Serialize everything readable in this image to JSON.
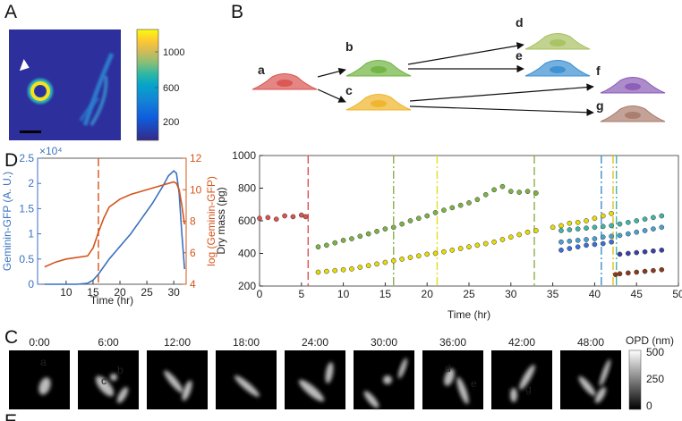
{
  "panel_labels": [
    "A",
    "B",
    "C",
    "D",
    "E"
  ],
  "panel_a": {
    "colorbar_ticks": [
      "1000",
      "600",
      "200"
    ]
  },
  "lineage": {
    "nodes": [
      {
        "label": "a",
        "color": "#d9534f"
      },
      {
        "label": "b",
        "color": "#6fb43f"
      },
      {
        "label": "c",
        "color": "#f0b429"
      },
      {
        "label": "d",
        "color": "#a8c060"
      },
      {
        "label": "e",
        "color": "#3b8fd1"
      },
      {
        "label": "f",
        "color": "#8a5bb5"
      },
      {
        "label": "g",
        "color": "#a97b6b"
      }
    ]
  },
  "panel_c": {
    "frames": [
      {
        "time": "0:00",
        "cells": [
          "a"
        ]
      },
      {
        "time": "6:00",
        "cells": [
          "b",
          "c"
        ]
      },
      {
        "time": "12:00",
        "cells": []
      },
      {
        "time": "18:00",
        "cells": []
      },
      {
        "time": "24:00",
        "cells": []
      },
      {
        "time": "30:00",
        "cells": []
      },
      {
        "time": "36:00",
        "cells": [
          "d",
          "e"
        ]
      },
      {
        "time": "42:00",
        "cells": [
          "f",
          "g"
        ]
      },
      {
        "time": "48:00",
        "cells": []
      }
    ],
    "colorbar_label": "OPD (nm)",
    "colorbar_ticks": [
      "500",
      "250",
      "0"
    ]
  },
  "chart_data": [
    {
      "type": "line",
      "xlabel": "Time (hr)",
      "ylabel": "Geminin-GFP (A. U.)",
      "y2label": "log (Geminin-GFP)",
      "y_multiplier": "×10⁴",
      "y_axis_color": "#3a72c0",
      "y2_axis_color": "#d4541c",
      "xlim": [
        4.7,
        32.3
      ],
      "xticks": [
        10,
        15,
        20,
        25,
        30
      ],
      "ylim": [
        0,
        2.5
      ],
      "yticks": [
        0,
        0.5,
        1,
        1.5,
        2,
        2.5
      ],
      "y2lim": [
        4,
        12
      ],
      "y2ticks": [
        4,
        6,
        8,
        10,
        12
      ],
      "x": [
        6,
        8,
        10,
        12,
        14,
        15,
        16,
        17,
        18,
        20,
        22,
        24,
        26,
        28,
        29,
        30,
        30.5,
        31,
        31.5,
        32
      ],
      "series": [
        {
          "color": "#3a72c0",
          "values": [
            0,
            0,
            0,
            0,
            0.02,
            0.08,
            0.2,
            0.35,
            0.5,
            0.75,
            1.0,
            1.3,
            1.6,
            1.95,
            2.15,
            2.25,
            2.2,
            1.8,
            1.0,
            0.3
          ]
        },
        {
          "color": "#d4541c",
          "axis": "y2",
          "values": [
            5.1,
            5.4,
            5.6,
            5.7,
            5.8,
            6.3,
            7.3,
            8.2,
            8.9,
            9.4,
            9.7,
            9.9,
            10.1,
            10.3,
            10.4,
            10.5,
            10.4,
            10,
            9,
            7.8
          ]
        }
      ],
      "vlines": [
        {
          "x": 16,
          "color": "#d4541c",
          "style": "dash"
        }
      ]
    },
    {
      "type": "scatter",
      "xlabel": "Time (hr)",
      "ylabel": "Dry mass (pg)",
      "xlim": [
        0,
        50
      ],
      "xticks": [
        0,
        5,
        10,
        15,
        20,
        25,
        30,
        35,
        40,
        45,
        50
      ],
      "ylim": [
        200,
        1000
      ],
      "yticks": [
        200,
        400,
        600,
        800,
        1000
      ],
      "series": [
        {
          "color": "#d9534f",
          "x": [
            0,
            1,
            2,
            3,
            4,
            5,
            5.5
          ],
          "values": [
            615,
            620,
            610,
            630,
            625,
            635,
            625
          ]
        },
        {
          "color": "#7cb342",
          "x": [
            7,
            8,
            9,
            10,
            11,
            12,
            13,
            14,
            15,
            16,
            17,
            18,
            19,
            20,
            21,
            22,
            23,
            24,
            25,
            26,
            27,
            28,
            29,
            30,
            31,
            32,
            33
          ],
          "values": [
            440,
            450,
            465,
            480,
            490,
            505,
            520,
            535,
            550,
            560,
            580,
            600,
            615,
            630,
            650,
            665,
            680,
            695,
            710,
            730,
            760,
            790,
            810,
            780,
            775,
            780,
            770
          ]
        },
        {
          "color": "#e6dc00",
          "x": [
            7,
            8,
            9,
            10,
            11,
            12,
            13,
            14,
            15,
            16,
            17,
            18,
            19,
            20,
            21,
            22,
            23,
            24,
            25,
            26,
            27,
            28,
            29,
            30,
            31,
            32,
            33
          ],
          "values": [
            285,
            290,
            295,
            300,
            305,
            315,
            325,
            335,
            345,
            355,
            365,
            375,
            385,
            395,
            400,
            410,
            420,
            430,
            440,
            450,
            460,
            470,
            485,
            500,
            515,
            530,
            540
          ]
        },
        {
          "color": "#e6dc00",
          "x": [
            35,
            36,
            37,
            38,
            39,
            40,
            41,
            42
          ],
          "values": [
            560,
            570,
            585,
            590,
            600,
            615,
            630,
            645
          ]
        },
        {
          "color": "#3fb6a8",
          "x": [
            36,
            37,
            38,
            39,
            40,
            41,
            42,
            43,
            44,
            45,
            46,
            47,
            48
          ],
          "values": [
            540,
            545,
            550,
            555,
            560,
            565,
            570,
            580,
            590,
            600,
            610,
            620,
            630
          ]
        },
        {
          "color": "#4aa0d0",
          "x": [
            36,
            37,
            38,
            39,
            40,
            41,
            42,
            43,
            44,
            45,
            46,
            47,
            48
          ],
          "values": [
            470,
            475,
            480,
            485,
            490,
            500,
            505,
            510,
            520,
            530,
            540,
            550,
            560
          ]
        },
        {
          "color": "#3a6fd8",
          "x": [
            36,
            37,
            38,
            39,
            40,
            41,
            42
          ],
          "values": [
            420,
            430,
            440,
            450,
            455,
            460,
            470
          ]
        },
        {
          "color": "#3b3fa8",
          "x": [
            43,
            44,
            45,
            46,
            47,
            48
          ],
          "values": [
            395,
            400,
            405,
            410,
            415,
            420
          ]
        },
        {
          "color": "#8b3a1a",
          "x": [
            42.5,
            43,
            44,
            45,
            46,
            47,
            48
          ],
          "values": [
            270,
            275,
            280,
            285,
            290,
            295,
            300
          ]
        }
      ],
      "vlines": [
        {
          "x": 5.8,
          "color": "#e05050",
          "style": "dash"
        },
        {
          "x": 16,
          "color": "#8ab04a",
          "style": "dashdot"
        },
        {
          "x": 21.2,
          "color": "#e0e020",
          "style": "dashdot"
        },
        {
          "x": 32.8,
          "color": "#8ab04a",
          "style": "dash"
        },
        {
          "x": 40.8,
          "color": "#3a8fd0",
          "style": "dashdot"
        },
        {
          "x": 42.2,
          "color": "#e0c020",
          "style": "dashdot"
        },
        {
          "x": 42.6,
          "color": "#3fb6a8",
          "style": "dashdot"
        }
      ]
    }
  ]
}
